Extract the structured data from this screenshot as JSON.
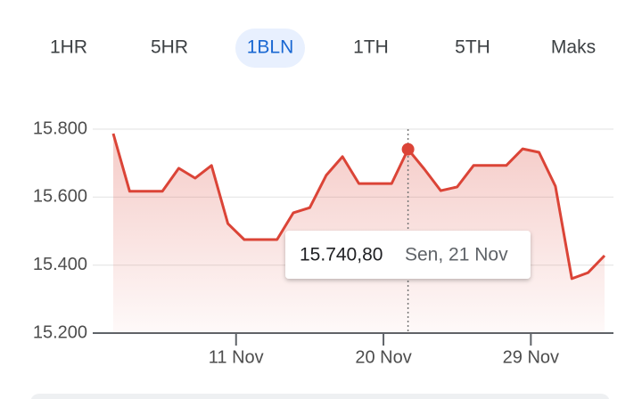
{
  "tabs": [
    "1HR",
    "5HR",
    "1BLN",
    "1TH",
    "5TH",
    "Maks"
  ],
  "chart_data": {
    "type": "line",
    "categories": [
      null,
      null,
      null,
      null,
      null,
      null,
      null,
      null,
      null,
      null,
      null,
      null,
      null,
      null,
      null,
      null,
      null,
      null,
      null,
      null,
      null,
      null,
      null,
      null,
      null,
      null,
      null,
      null,
      null,
      null,
      null
    ],
    "series": [
      {
        "color": "#db4437",
        "values": [
          15787,
          15617,
          15617,
          15617,
          15685,
          15656,
          15693,
          15522,
          15475,
          15475,
          15475,
          15554,
          15569,
          15664,
          15719,
          15640,
          15640,
          15640,
          15740.8,
          15682,
          15619,
          15630,
          15693,
          15693,
          15693,
          15742,
          15732,
          15632,
          15360,
          15378,
          15428
        ]
      }
    ],
    "ylim": [
      15200,
      15800
    ],
    "yticks": [
      {
        "value": 15200,
        "label": "15.200"
      },
      {
        "value": 15400,
        "label": "15.400"
      },
      {
        "value": 15600,
        "label": "15.600"
      },
      {
        "value": 15800,
        "label": "15.800"
      }
    ],
    "xticks": [
      {
        "value": 7.5,
        "label": "11 Nov"
      },
      {
        "value": 16.5,
        "label": "20 Nov"
      },
      {
        "value": 25.5,
        "label": "29 Nov"
      }
    ],
    "grid": true,
    "tooltip": {
      "value": "15.740,80",
      "date": "Sen, 21 Nov"
    }
  }
}
